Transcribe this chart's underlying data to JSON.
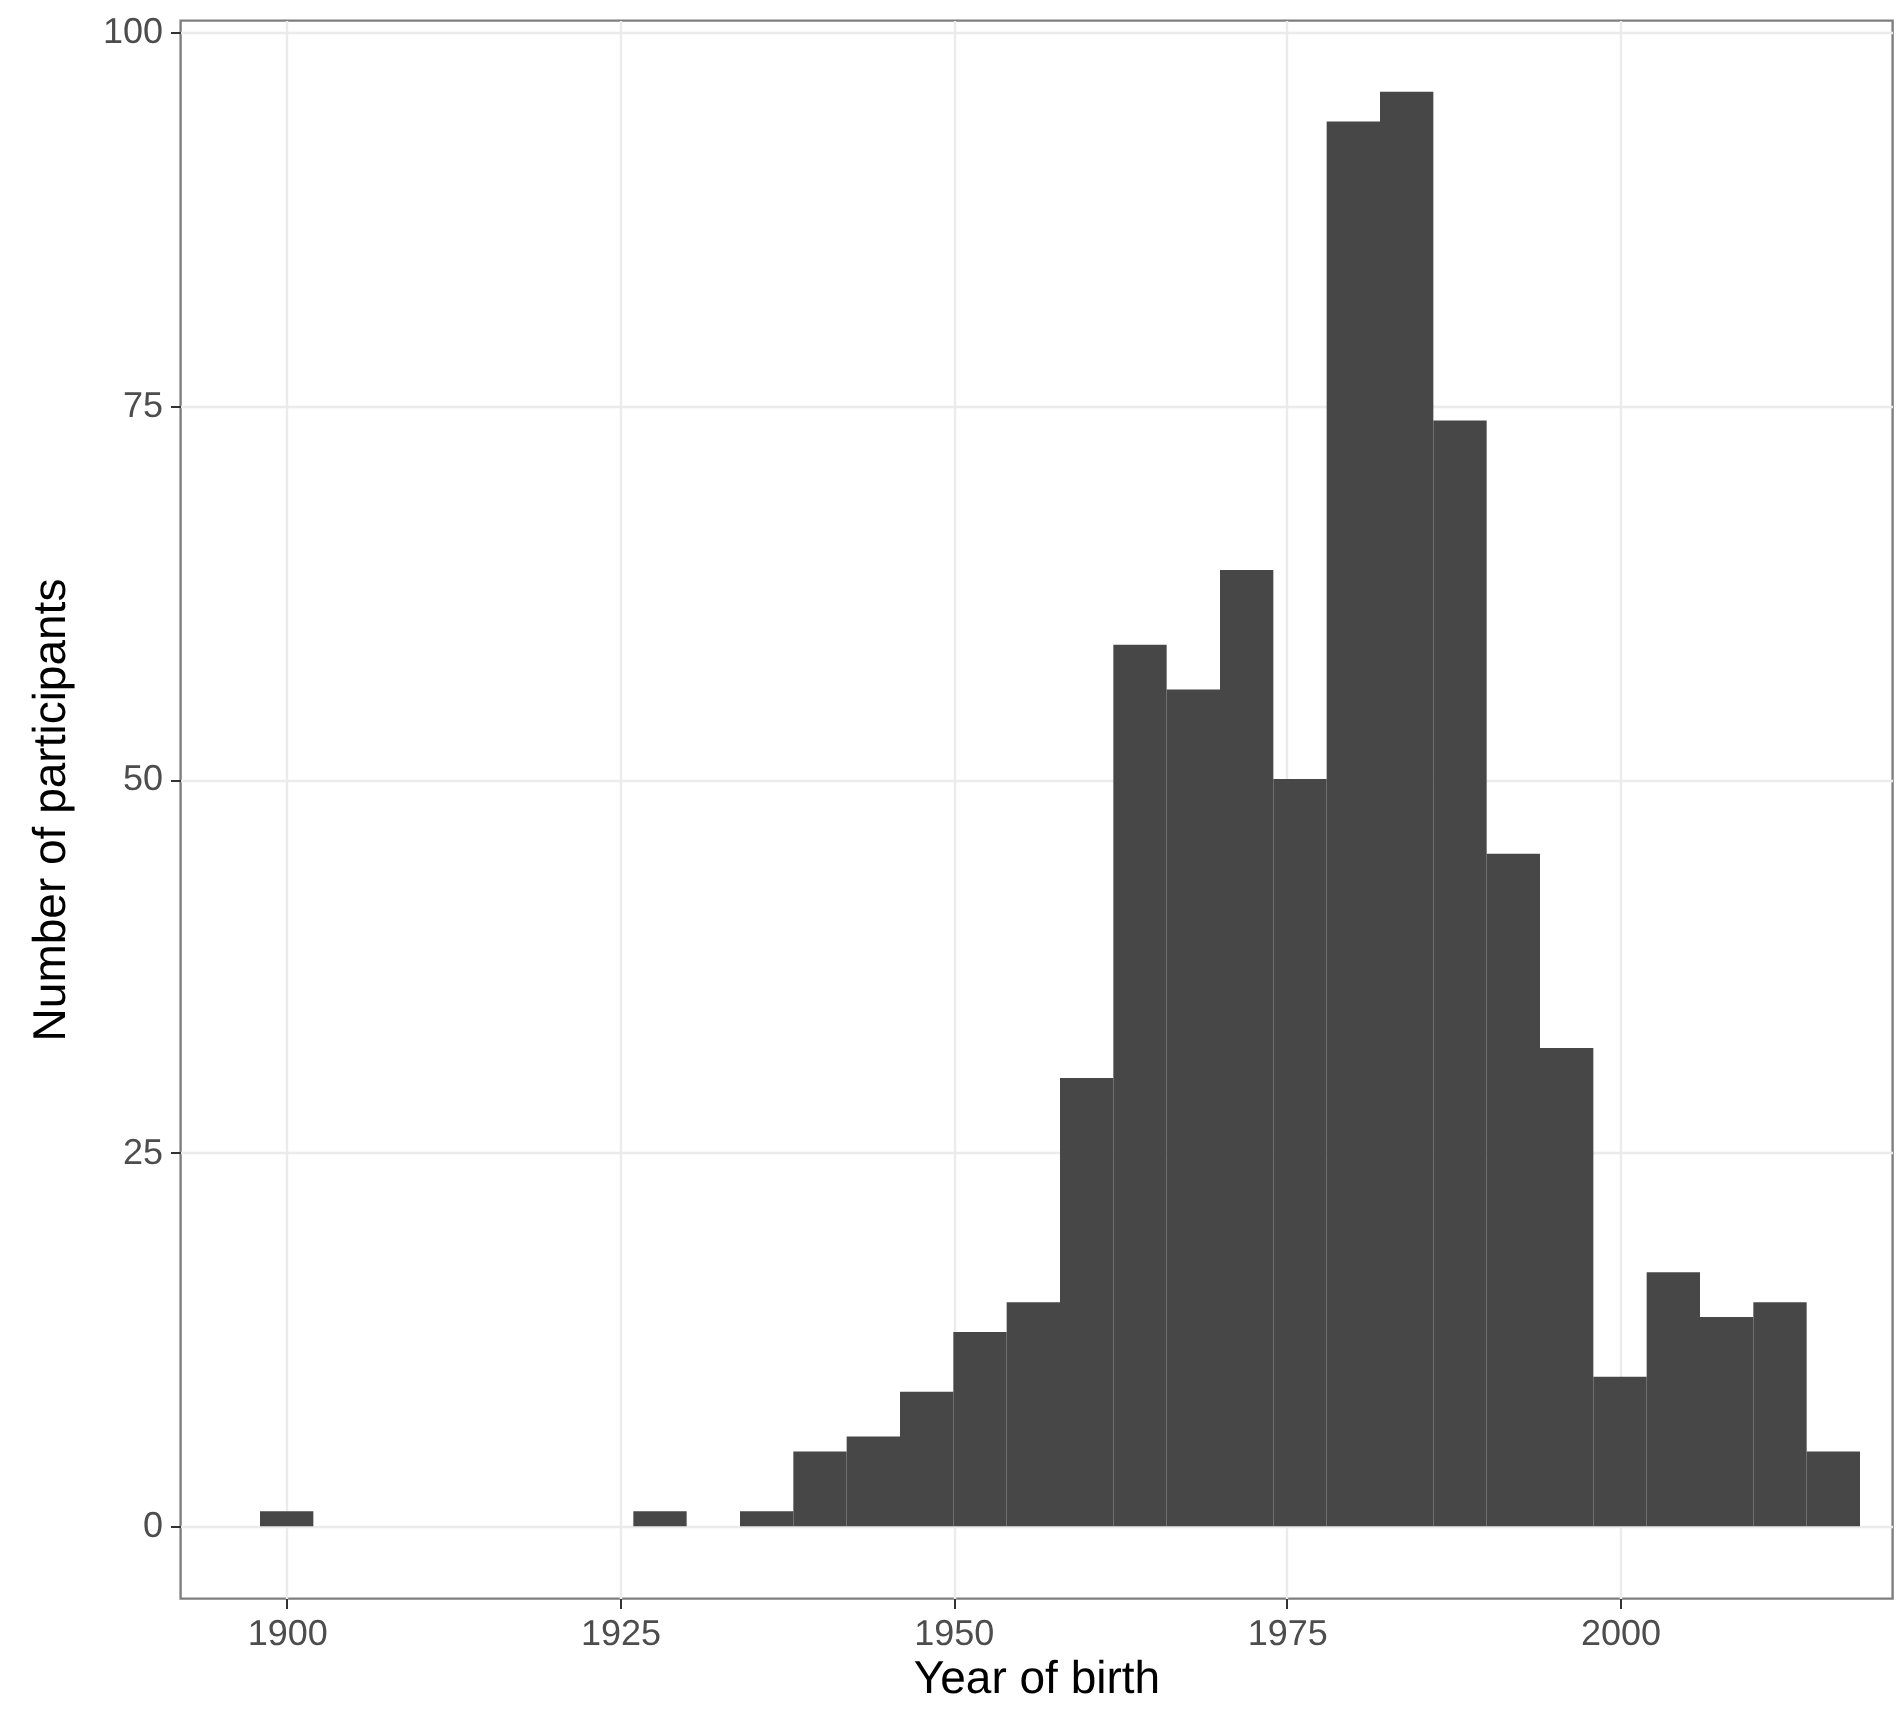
{
  "chart_data": {
    "type": "histogram",
    "xlabel": "Year of birth",
    "ylabel": "Number of participants",
    "bins": [
      1898,
      1902,
      1906,
      1910,
      1914,
      1918,
      1922,
      1926,
      1930,
      1934,
      1938,
      1942,
      1946,
      1950,
      1954,
      1958,
      1962,
      1966,
      1970,
      1974,
      1978,
      1982,
      1986,
      1990,
      1994,
      1998,
      2002,
      2006,
      2010,
      2014,
      2018
    ],
    "values": [
      1,
      0,
      0,
      0,
      0,
      0,
      0,
      1,
      0,
      1,
      5,
      6,
      9,
      13,
      15,
      30,
      59,
      56,
      64,
      50,
      94,
      96,
      74,
      45,
      32,
      10,
      17,
      14,
      15,
      5
    ],
    "color": "#474747",
    "xlim": [
      1892,
      2020.4
    ],
    "xticks": [
      1900,
      1925,
      1950,
      1975,
      2000
    ],
    "ylim": [
      -4.8,
      100.8
    ],
    "yticks": [
      0,
      25,
      50,
      75,
      100
    ],
    "grid": true
  }
}
